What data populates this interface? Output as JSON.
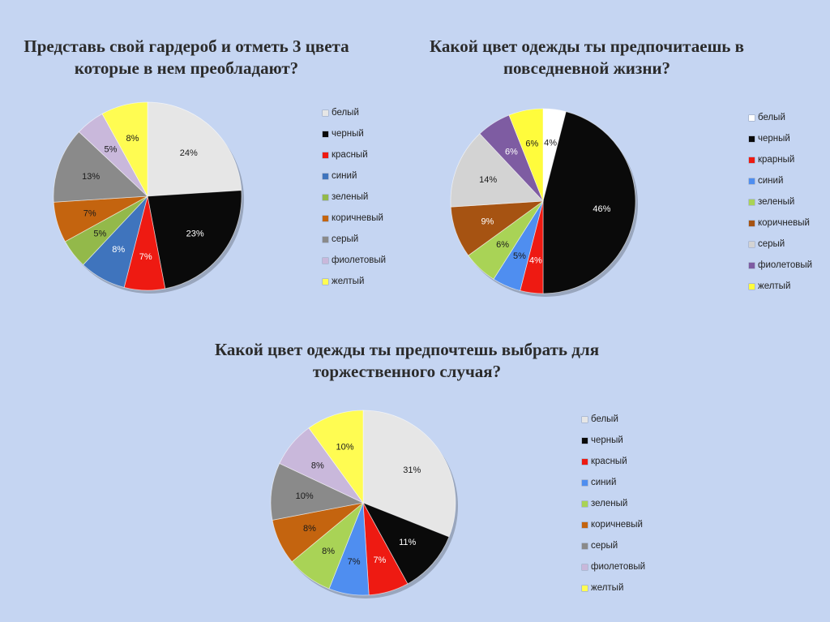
{
  "categories": [
    "белый",
    "черный",
    "красный",
    "синий",
    "зеленый",
    "коричневый",
    "серый",
    "фиолетовый",
    "желтый"
  ],
  "colors": {
    "белый": "#e6e6e6",
    "черный": "#0a0a0a",
    "красный": "#ee1a12",
    "синий": "#4177c6",
    "зеленый": "#93b94a",
    "коричневый": "#c4640f",
    "серый": "#8a8a8a",
    "фиолетовый": "#c9b8db",
    "желтый": "#fffc52"
  },
  "chart_data": [
    {
      "type": "pie",
      "title": "Представь свой гардероб и отметь 3 цвета которые в нем преобладают?",
      "slices": [
        {
          "name": "белый",
          "value": 24,
          "label": "24%",
          "color": "#e6e6e6"
        },
        {
          "name": "черный",
          "value": 23,
          "label": "23%",
          "color": "#0a0a0a"
        },
        {
          "name": "красный",
          "value": 7,
          "label": "7%",
          "color": "#ee1a12"
        },
        {
          "name": "синий",
          "value": 8,
          "label": "8%",
          "color": "#3f74bd"
        },
        {
          "name": "зеленый",
          "value": 5,
          "label": "5%",
          "color": "#93b94a"
        },
        {
          "name": "коричневый",
          "value": 7,
          "label": "7%",
          "color": "#c4640f"
        },
        {
          "name": "серый",
          "value": 13,
          "label": "13%",
          "color": "#8a8a8a"
        },
        {
          "name": "фиолетовый",
          "value": 5,
          "label": "5%",
          "color": "#c9b8db"
        },
        {
          "name": "желтый",
          "value": 8,
          "label": "8%",
          "color": "#fffc52"
        }
      ],
      "legend": [
        "белый",
        "черный",
        "красный",
        "синий",
        "зеленый",
        "коричневый",
        "серый",
        "фиолетовый",
        "желтый"
      ],
      "legend_colors": [
        "#e6e6e6",
        "#0a0a0a",
        "#ee1a12",
        "#3f74bd",
        "#93b94a",
        "#c4640f",
        "#8a8a8a",
        "#c9b8db",
        "#fffc52"
      ],
      "legend_position": "right"
    },
    {
      "type": "pie",
      "title": "Какой цвет одежды ты предпочитаешь в повседневной жизни?",
      "slices": [
        {
          "name": "белый",
          "value": 4,
          "label": "4%",
          "color": "#ffffff"
        },
        {
          "name": "черный",
          "value": 46,
          "label": "46%",
          "color": "#0a0a0a"
        },
        {
          "name": "красный",
          "value": 4,
          "label": "4%",
          "color": "#ee1a12"
        },
        {
          "name": "синий",
          "value": 5,
          "label": "5%",
          "color": "#4f8ef0"
        },
        {
          "name": "зеленый",
          "value": 6,
          "label": "6%",
          "color": "#a9d356"
        },
        {
          "name": "коричневый",
          "value": 9,
          "label": "9%",
          "color": "#a65312"
        },
        {
          "name": "серый",
          "value": 14,
          "label": "14%",
          "color": "#d3d3d3"
        },
        {
          "name": "фиолетовый",
          "value": 6,
          "label": "6%",
          "color": "#7e5ca2"
        },
        {
          "name": "желтый",
          "value": 6,
          "label": "6%",
          "color": "#fffc3c"
        }
      ],
      "legend": [
        "белый",
        "черный",
        "крарный",
        "синий",
        "зеленый",
        "коричневый",
        "серый",
        "фиолетовый",
        "желтый"
      ],
      "legend_colors": [
        "#ffffff",
        "#0a0a0a",
        "#ee1a12",
        "#4f8ef0",
        "#a9d356",
        "#a65312",
        "#d3d3d3",
        "#7e5ca2",
        "#fffc3c"
      ],
      "legend_position": "right"
    },
    {
      "type": "pie",
      "title": "Какой цвет одежды ты предпочтешь выбрать для торжественного случая?",
      "slices": [
        {
          "name": "белый",
          "value": 31,
          "label": "31%",
          "color": "#e6e6e6"
        },
        {
          "name": "черный",
          "value": 11,
          "label": "11%",
          "color": "#0a0a0a"
        },
        {
          "name": "красный",
          "value": 7,
          "label": "7%",
          "color": "#ee1a12"
        },
        {
          "name": "синий",
          "value": 7,
          "label": "7%",
          "color": "#4f8ef0"
        },
        {
          "name": "зеленый",
          "value": 8,
          "label": "8%",
          "color": "#a9d356"
        },
        {
          "name": "коричневый",
          "value": 8,
          "label": "8%",
          "color": "#c4640f"
        },
        {
          "name": "серый",
          "value": 10,
          "label": "10%",
          "color": "#8a8a8a"
        },
        {
          "name": "фиолетовый",
          "value": 8,
          "label": "8%",
          "color": "#c9b8db"
        },
        {
          "name": "желтый",
          "value": 10,
          "label": "10%",
          "color": "#fffc52"
        }
      ],
      "legend": [
        "белый",
        "черный",
        "красный",
        "синий",
        "зеленый",
        "коричневый",
        "серый",
        "фиолетовый",
        "желтый"
      ],
      "legend_colors": [
        "#e6e6e6",
        "#0a0a0a",
        "#ee1a12",
        "#4f8ef0",
        "#a9d356",
        "#c4640f",
        "#8a8a8a",
        "#c9b8db",
        "#fffc52"
      ],
      "legend_position": "right"
    }
  ]
}
